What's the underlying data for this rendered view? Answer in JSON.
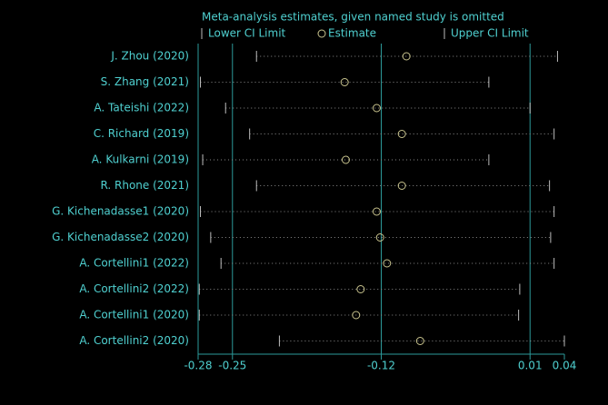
{
  "chart_data": {
    "type": "interval",
    "title": "Meta-analysis estimates, given named study is omitted",
    "categories": [
      "J. Zhou (2020)",
      "S. Zhang (2021)",
      "A. Tateishi (2022)",
      "C. Richard (2019)",
      "A. Kulkarni (2019)",
      "R. Rhone (2021)",
      "G. Kichenadasse1 (2020)",
      "G. Kichenadasse2 (2020)",
      "A. Cortellini1 (2022)",
      "A. Cortellini2 (2022)",
      "A. Cortellini1 (2020)",
      "A. Cortellini2 (2020)"
    ],
    "series": [
      {
        "name": "Lower CI Limit",
        "color": "#bdbdbd",
        "values": [
          -0.229,
          -0.278,
          -0.256,
          -0.235,
          -0.276,
          -0.229,
          -0.278,
          -0.269,
          -0.26,
          -0.279,
          -0.279,
          -0.209
        ]
      },
      {
        "name": "Estimate",
        "color": "#c9c48e",
        "values": [
          -0.098,
          -0.152,
          -0.124,
          -0.102,
          -0.151,
          -0.102,
          -0.124,
          -0.121,
          -0.115,
          -0.138,
          -0.142,
          -0.086
        ]
      },
      {
        "name": "Upper CI Limit",
        "color": "#bdbdbd",
        "values": [
          0.034,
          -0.026,
          0.01,
          0.031,
          -0.026,
          0.027,
          0.031,
          0.028,
          0.031,
          0.001,
          0.0,
          0.04
        ]
      }
    ],
    "xlim": [
      -0.28,
      0.04
    ],
    "xticks": [
      -0.28,
      -0.25,
      -0.12,
      0.01,
      0.04
    ],
    "reference_lines": [
      -0.25,
      -0.12,
      0.01
    ],
    "reference_color": "#2c9a9a",
    "text_color": "#4fd0d0"
  }
}
